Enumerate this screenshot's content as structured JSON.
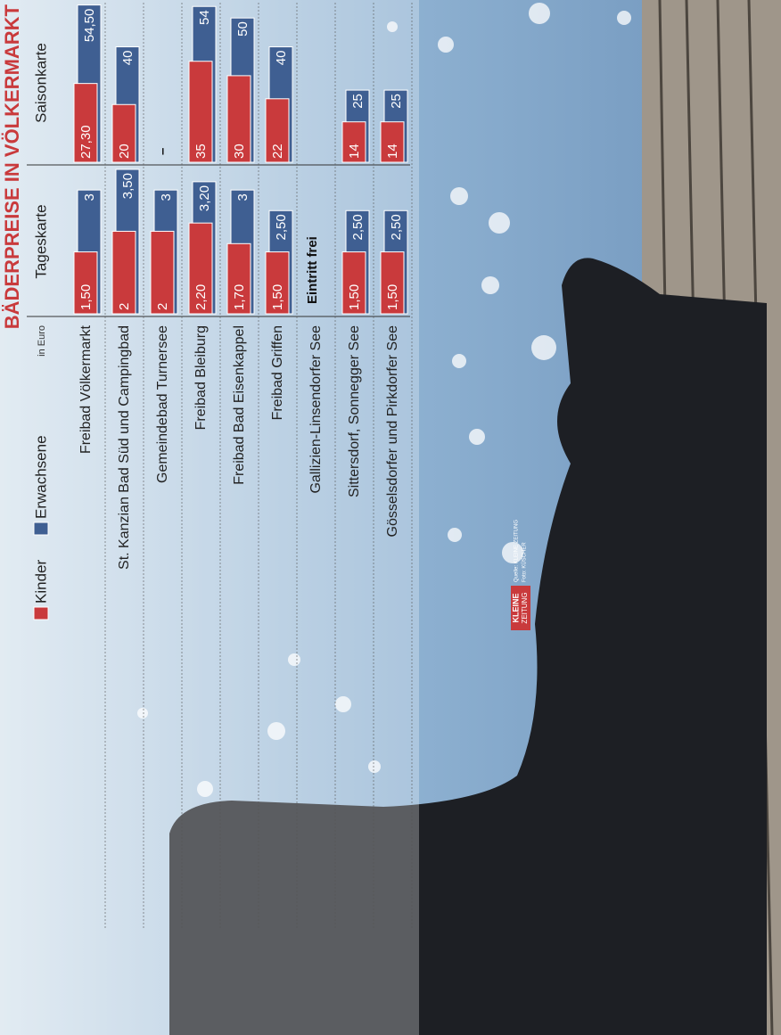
{
  "chart_data": {
    "type": "bar",
    "title": "BÄDERPREISE IN VÖLKERMARKT",
    "unit": "in Euro",
    "annotation": "Eintritt frei",
    "categories": [
      "Freibad Völkermarkt",
      "St. Kanzian Bad Süd und Campingbad",
      "Gemeindebad Turnersee",
      "Freibad Bleiburg",
      "Freibad Bad Eisenkappel",
      "Freibad Griffen",
      "Gallizien-Linsendorfer See",
      "Sittersdorf, Sonnegger See",
      "Gösselsdorfer und Pirkdorfer See"
    ],
    "series": [
      {
        "name": "Kinder",
        "color": "#c93a3c"
      },
      {
        "name": "Erwachsene",
        "color": "#3f5f92"
      }
    ],
    "panels": [
      {
        "title": "Tageskarte",
        "xlim": [
          0,
          3.5
        ],
        "series": [
          {
            "values": [
              1.5,
              2,
              2,
              2.2,
              1.7,
              1.5,
              null,
              1.5,
              1.5
            ],
            "value_labels": [
              "1,50",
              "2",
              "2",
              "2,20",
              "1,70",
              "1,50",
              null,
              "1,50",
              "1,50"
            ]
          },
          {
            "values": [
              3,
              3.5,
              3,
              3.2,
              3,
              2.5,
              null,
              2.5,
              2.5
            ],
            "value_labels": [
              "3",
              "3,50",
              "3",
              "3,20",
              "3",
              "2,50",
              null,
              "2,50",
              "2,50"
            ]
          }
        ]
      },
      {
        "title": "Saisonkarte",
        "xlim": [
          0,
          55
        ],
        "series": [
          {
            "values": [
              27.3,
              20,
              null,
              35,
              30,
              22,
              null,
              14,
              14
            ],
            "value_labels": [
              "27,30",
              "20",
              "–",
              "35",
              "30",
              "22",
              null,
              "14",
              "14"
            ]
          },
          {
            "values": [
              54.5,
              40,
              null,
              54,
              50,
              40,
              null,
              25,
              25
            ],
            "value_labels": [
              "54,50",
              "40",
              null,
              "54",
              "50",
              "40",
              null,
              "25",
              "25"
            ]
          }
        ]
      }
    ]
  },
  "source": {
    "logo_top": "KLEINE",
    "logo_bottom": "ZEITUNG",
    "line1": "Quelle: KLEINE ZEITUNG",
    "line2": "Foto: KÜSCHER"
  }
}
